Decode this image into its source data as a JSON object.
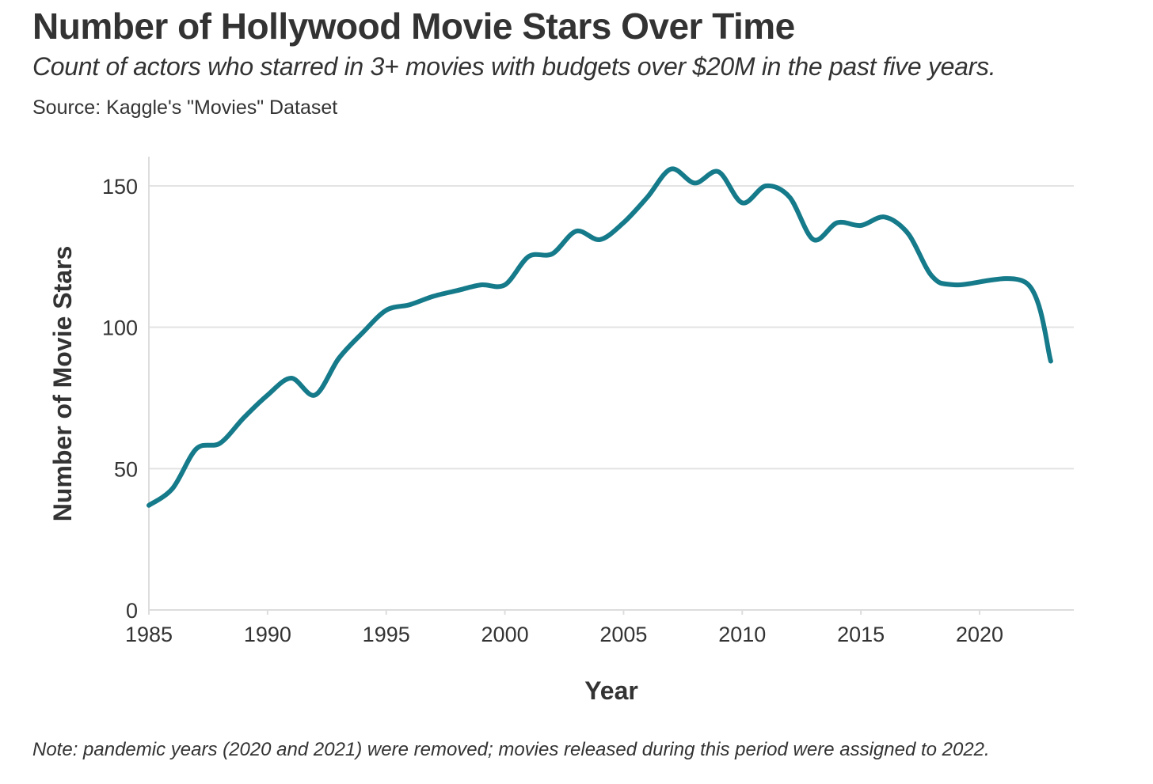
{
  "header": {
    "title": "Number of Hollywood Movie Stars Over Time",
    "subtitle": "Count of actors who starred in 3+ movies with budgets over $20M in the past five years.",
    "source": "Source: Kaggle's \"Movies\" Dataset"
  },
  "footer": {
    "note": "Note: pandemic years (2020 and 2021) were removed; movies released during this period were assigned to 2022."
  },
  "chart_data": {
    "type": "line",
    "title": "Number of Hollywood Movie Stars Over Time",
    "subtitle": "Count of actors who starred in 3+ movies with budgets over $20M in the past five years.",
    "xlabel": "Year",
    "ylabel": "Number of Movie Stars",
    "xlim": [
      1985,
      2023
    ],
    "ylim": [
      0,
      160
    ],
    "x_ticks": [
      1985,
      1990,
      1995,
      2000,
      2005,
      2010,
      2015,
      2020
    ],
    "y_ticks": [
      0,
      50,
      100,
      150
    ],
    "grid": "horizontal",
    "line_color": "#157a8a",
    "x": [
      1985,
      1986,
      1987,
      1988,
      1989,
      1990,
      1991,
      1992,
      1993,
      1994,
      1995,
      1996,
      1997,
      1998,
      1999,
      2000,
      2001,
      2002,
      2003,
      2004,
      2005,
      2006,
      2007,
      2008,
      2009,
      2010,
      2011,
      2012,
      2013,
      2014,
      2015,
      2016,
      2017,
      2018,
      2019,
      2022,
      2023
    ],
    "y": [
      37,
      43,
      57,
      59,
      68,
      76,
      82,
      76,
      89,
      98,
      106,
      108,
      111,
      113,
      115,
      115,
      125,
      126,
      134,
      131,
      137,
      146,
      156,
      151,
      155,
      144,
      150,
      146,
      131,
      137,
      136,
      139,
      133,
      118,
      115,
      115.5,
      88
    ]
  }
}
